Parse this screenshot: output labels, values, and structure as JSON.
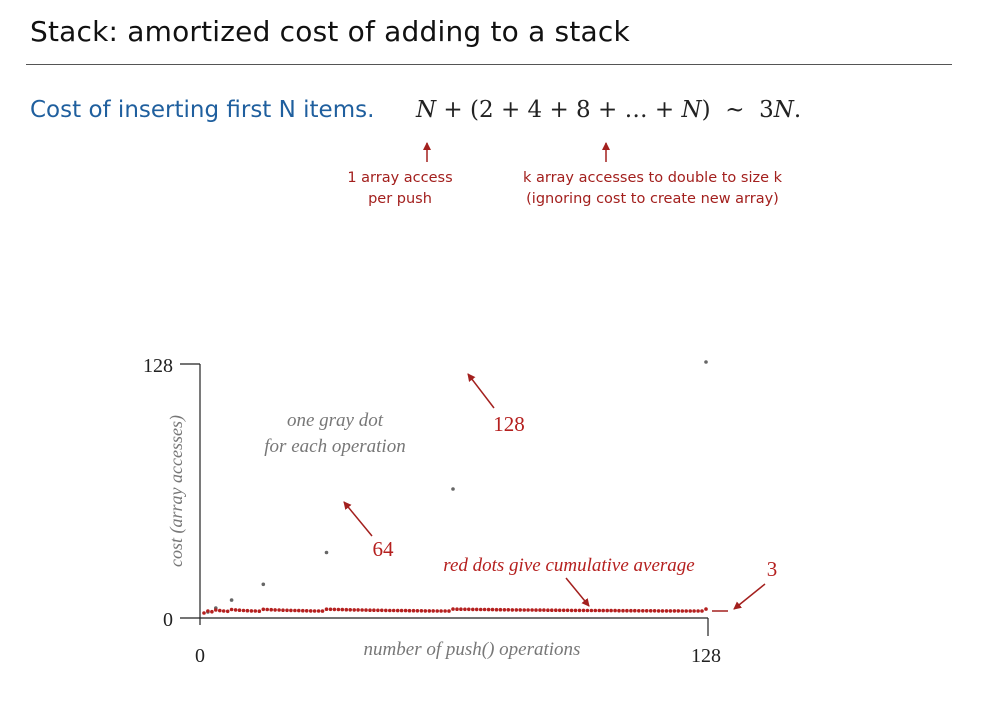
{
  "header": {
    "title": "Stack:  amortized cost of adding to a stack"
  },
  "formula": {
    "label": "Cost of inserting first N items.",
    "part_N": "N",
    "part_plus": " + ",
    "part_open": "(2 + 4 + 8 + … + ",
    "part_N2": "N",
    "part_close": ")",
    "part_tilde": "  ~  ",
    "part_3": "3",
    "part_N3": "N",
    "part_dot": "."
  },
  "annotations": {
    "push_cost_line1": "1 array access",
    "push_cost_line2": "per push",
    "resize_cost_line1": "k array accesses to double to size k",
    "resize_cost_line2": "(ignoring cost to create new array)"
  },
  "chart_data": {
    "type": "scatter",
    "xlabel": "number of push() operations",
    "ylabel": "cost (array accesses)",
    "xlim": [
      0,
      128
    ],
    "ylim": [
      0,
      128
    ],
    "x_ticks": [
      "0",
      "128"
    ],
    "y_ticks": [
      "0",
      "128"
    ],
    "annotations": {
      "gray_note_line1": "one gray dot",
      "gray_note_line2": "for each operation",
      "red_note": "red dots give cumulative average",
      "label_128": "128",
      "label_64": "64",
      "label_3": "3"
    },
    "series": [
      {
        "name": "",
        "description": "cost of i-th push: 1, plus i when array doubles (i = 2,4,8,...,128)",
        "color": "#666666"
      },
      {
        "name": "",
        "description": "cumulative average cost",
        "color": "#b5201f"
      }
    ],
    "n_ops": 128
  }
}
